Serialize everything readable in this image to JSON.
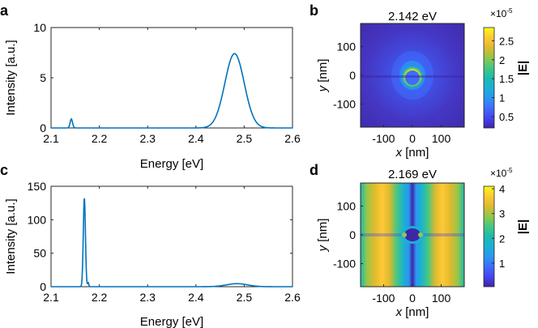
{
  "colors": {
    "line": "#0072BD",
    "axis": "#262626",
    "text": "#000000",
    "colormap": [
      "#3E26A8",
      "#4743F0",
      "#3E6DFD",
      "#2C96F0",
      "#1AB0D5",
      "#1CBBAD",
      "#45C782",
      "#93C74A",
      "#DDBA2E",
      "#FEC936",
      "#F9FB15"
    ]
  },
  "chart_data": [
    {
      "panel": "a",
      "type": "line",
      "xlabel": "Energy [eV]",
      "ylabel": "Intensity [a.u.]",
      "xlim": [
        2.1,
        2.6
      ],
      "ylim": [
        0,
        10
      ],
      "xticks": [
        "2.1",
        "2.2",
        "2.3",
        "2.4",
        "2.5",
        "2.6"
      ],
      "yticks": [
        "0",
        "5",
        "10"
      ],
      "peaks": [
        {
          "center": 2.142,
          "height": 0.9,
          "width": 0.0025
        },
        {
          "center": 2.48,
          "height": 7.4,
          "width": 0.02
        }
      ]
    },
    {
      "panel": "b",
      "type": "heatmap",
      "title": "2.142 eV",
      "xlabel": "x [nm]",
      "ylabel": "y [nm]",
      "xlim": [
        -180,
        180
      ],
      "ylim": [
        -180,
        180
      ],
      "xticks": [
        "-100",
        "0",
        "100"
      ],
      "yticks": [
        "100",
        "0",
        "-100"
      ],
      "colorbar": {
        "label": "|E|",
        "exponent": "×10",
        "power": "-5",
        "ticks": [
          "2.5",
          "2",
          "1.5",
          "1",
          "0.5"
        ],
        "range": [
          0.2,
          2.85
        ]
      }
    },
    {
      "panel": "c",
      "type": "line",
      "xlabel": "Energy [eV]",
      "ylabel": "Intensity [a.u.]",
      "xlim": [
        2.1,
        2.6
      ],
      "ylim": [
        0,
        150
      ],
      "xticks": [
        "2.1",
        "2.2",
        "2.3",
        "2.4",
        "2.5",
        "2.6"
      ],
      "yticks": [
        "0",
        "50",
        "100",
        "150"
      ],
      "peaks": [
        {
          "center": 2.169,
          "height": 133,
          "width": 0.0022
        },
        {
          "center": 2.177,
          "height": 6,
          "width": 0.0012
        },
        {
          "center": 2.485,
          "height": 4.5,
          "width": 0.022
        }
      ]
    },
    {
      "panel": "d",
      "type": "heatmap",
      "title": "2.169 eV",
      "xlabel": "x [nm]",
      "ylabel": "y [nm]",
      "xlim": [
        -180,
        180
      ],
      "ylim": [
        -180,
        180
      ],
      "xticks": [
        "-100",
        "0",
        "100"
      ],
      "yticks": [
        "100",
        "0",
        "-100"
      ],
      "colorbar": {
        "label": "|E|",
        "exponent": "×10",
        "power": "-5",
        "ticks": [
          "4",
          "3",
          "2",
          "1"
        ],
        "range": [
          0.05,
          4.1
        ]
      }
    }
  ]
}
